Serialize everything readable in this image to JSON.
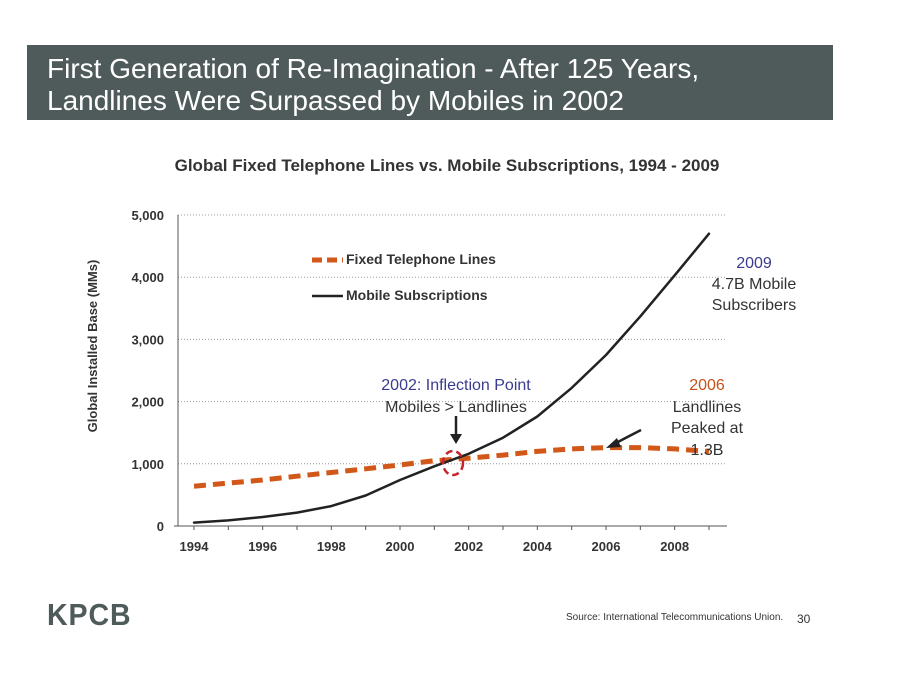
{
  "header": {
    "title_line1": "First Generation of Re-Imagination - After 125 Years,",
    "title_line2": "Landlines Were Surpassed by Mobiles in 2002"
  },
  "chart_data": {
    "type": "line",
    "title": "Global Fixed Telephone Lines vs. Mobile Subscriptions, 1994 - 2009",
    "ylabel": "Global Installed Base (MMs)",
    "xlabel": "",
    "xlim": [
      1994,
      2009
    ],
    "ylim": [
      0,
      5000
    ],
    "x_ticks": [
      "1994",
      "1996",
      "1998",
      "2000",
      "2002",
      "2004",
      "2006",
      "2008"
    ],
    "y_ticks": [
      "0",
      "1,000",
      "2,000",
      "3,000",
      "4,000",
      "5,000"
    ],
    "grid": "horizontal dotted",
    "legend_position": "top-left",
    "series": [
      {
        "name": "Fixed Telephone Lines",
        "color": "#d2581a",
        "style": "dashed",
        "x": [
          1994,
          1995,
          1996,
          1997,
          1998,
          1999,
          2000,
          2001,
          2002,
          2003,
          2004,
          2005,
          2006,
          2007,
          2008,
          2009
        ],
        "values": [
          640,
          690,
          740,
          800,
          860,
          920,
          980,
          1050,
          1090,
          1140,
          1200,
          1240,
          1260,
          1260,
          1240,
          1200
        ]
      },
      {
        "name": "Mobile Subscriptions",
        "color": "#222222",
        "style": "solid",
        "x": [
          1994,
          1995,
          1996,
          1997,
          1998,
          1999,
          2000,
          2001,
          2002,
          2003,
          2004,
          2005,
          2006,
          2007,
          2008,
          2009
        ],
        "values": [
          55,
          90,
          145,
          215,
          320,
          490,
          740,
          960,
          1160,
          1420,
          1760,
          2220,
          2750,
          3370,
          4030,
          4700
        ]
      }
    ],
    "annotations": {
      "inflection_title": "2002: Inflection Point",
      "inflection_sub": "Mobiles > Landlines",
      "peak_year": "2006",
      "peak_line1": "Landlines",
      "peak_line2": "Peaked at",
      "peak_line3": "1.3B",
      "mobile_year": "2009",
      "mobile_line1": "4.7B Mobile",
      "mobile_line2": "Subscribers"
    },
    "colors": {
      "annotation_blue": "#3b3b8f",
      "annotation_orange": "#c8511b",
      "circle_red": "#c8232a"
    }
  },
  "footer": {
    "logo": "KPCB",
    "source": "Source: International Telecommunications Union.",
    "page_number": "30"
  }
}
